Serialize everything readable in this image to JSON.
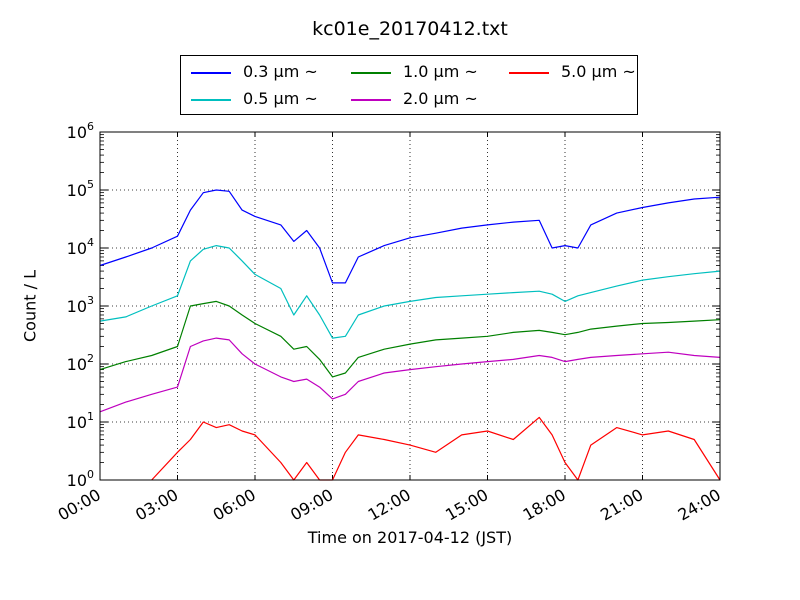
{
  "chart_data": {
    "type": "line",
    "title": "kc01e_20170412.txt",
    "xlabel": "Time on 2017-04-12 (JST)",
    "ylabel": "Count / L",
    "yscale": "log",
    "ylim": [
      1,
      1000000
    ],
    "xlim": [
      "00:00",
      "24:00"
    ],
    "x_ticks": [
      "00:00",
      "03:00",
      "06:00",
      "09:00",
      "12:00",
      "15:00",
      "18:00",
      "21:00",
      "24:00"
    ],
    "y_ticks": [
      "10^0",
      "10^1",
      "10^2",
      "10^3",
      "10^4",
      "10^5",
      "10^6"
    ],
    "grid": true,
    "legend_position": "top",
    "x": [
      "00:00",
      "01:00",
      "02:00",
      "03:00",
      "03:30",
      "04:00",
      "04:30",
      "05:00",
      "05:30",
      "06:00",
      "07:00",
      "07:30",
      "08:00",
      "08:30",
      "09:00",
      "09:30",
      "10:00",
      "11:00",
      "12:00",
      "13:00",
      "14:00",
      "15:00",
      "16:00",
      "17:00",
      "17:30",
      "18:00",
      "18:30",
      "19:00",
      "20:00",
      "21:00",
      "22:00",
      "23:00",
      "24:00"
    ],
    "series": [
      {
        "name": "0.3 μm ~",
        "color": "#0000ff",
        "values": [
          5000,
          7000,
          10000,
          16000,
          45000,
          90000,
          100000,
          95000,
          45000,
          35000,
          25000,
          13000,
          20000,
          10000,
          2500,
          2500,
          7000,
          11000,
          15000,
          18000,
          22000,
          25000,
          28000,
          30000,
          10000,
          11000,
          10000,
          25000,
          40000,
          50000,
          60000,
          70000,
          75000
        ]
      },
      {
        "name": "0.5 μm ~",
        "color": "#00bfbf",
        "values": [
          550,
          650,
          1000,
          1500,
          6000,
          9500,
          11000,
          10000,
          6000,
          3500,
          2000,
          700,
          1500,
          700,
          280,
          300,
          700,
          1000,
          1200,
          1400,
          1500,
          1600,
          1700,
          1800,
          1600,
          1200,
          1500,
          1700,
          2200,
          2800,
          3200,
          3600,
          4000
        ]
      },
      {
        "name": "1.0 μm ~",
        "color": "#008000",
        "values": [
          80,
          110,
          140,
          200,
          1000,
          1100,
          1200,
          1000,
          700,
          500,
          300,
          180,
          200,
          120,
          60,
          70,
          130,
          180,
          220,
          260,
          280,
          300,
          350,
          380,
          350,
          320,
          350,
          400,
          450,
          500,
          520,
          550,
          580
        ]
      },
      {
        "name": "2.0 μm ~",
        "color": "#bf00bf",
        "values": [
          15,
          22,
          30,
          40,
          200,
          250,
          280,
          260,
          150,
          100,
          60,
          50,
          55,
          40,
          25,
          30,
          50,
          70,
          80,
          90,
          100,
          110,
          120,
          140,
          130,
          110,
          120,
          130,
          140,
          150,
          160,
          140,
          130
        ]
      },
      {
        "name": "5.0 μm ~",
        "color": "#ff0000",
        "values": [
          0,
          0,
          1,
          3,
          5,
          10,
          8,
          9,
          7,
          6,
          2,
          1,
          2,
          1,
          1,
          3,
          6,
          5,
          4,
          3,
          6,
          7,
          5,
          12,
          6,
          2,
          1,
          4,
          8,
          6,
          7,
          5,
          1
        ]
      }
    ]
  }
}
